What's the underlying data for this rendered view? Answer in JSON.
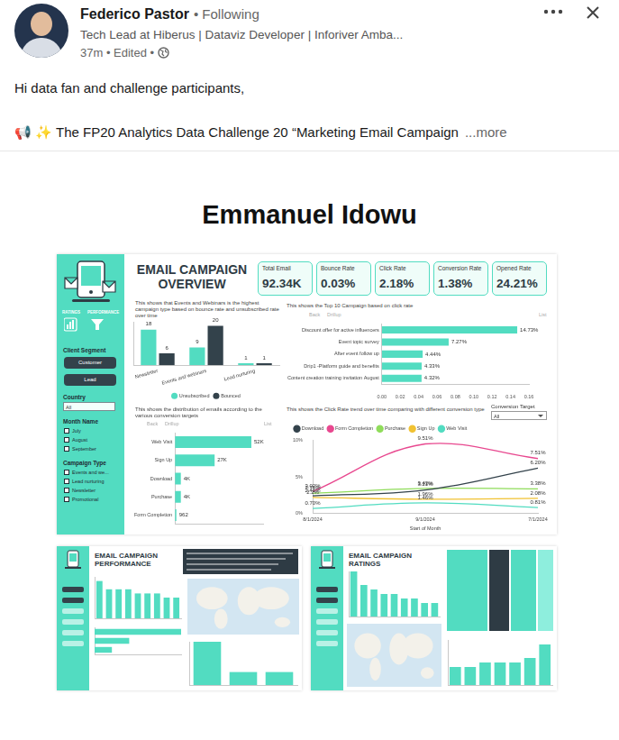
{
  "post": {
    "author": "Federico Pastor",
    "connection": "• Following",
    "headline": "Tech Lead at Hiberus | Dataviz Developer | Inforiver Amba...",
    "meta": "37m • Edited •",
    "greeting": "Hi data fan and challenge participants,",
    "intro": "📢 ✨ The FP20 Analytics Data Challenge 20 “Marketing Email Campaign",
    "more": "...more",
    "image_caption": "Emmanuel Idowu"
  },
  "dashboard": {
    "title": "EMAIL CAMPAIGN OVERVIEW",
    "nav": [
      "RATINGS",
      "PERFORMANCE"
    ],
    "kpis": [
      {
        "label": "Total Email",
        "value": "92.34K"
      },
      {
        "label": "Bounce Rate",
        "value": "0.03%"
      },
      {
        "label": "Click Rate",
        "value": "2.18%"
      },
      {
        "label": "Conversion Rate",
        "value": "1.38%"
      },
      {
        "label": "Opened Rate",
        "value": "24.21%"
      }
    ],
    "filters": {
      "client_segment": {
        "label": "Client Segment",
        "options": [
          "Customer",
          "Lead"
        ]
      },
      "country": {
        "label": "Country",
        "value": "All"
      },
      "month": {
        "label": "Month Name",
        "options": [
          "July",
          "August",
          "September"
        ]
      },
      "campaign_type": {
        "label": "Campaign Type",
        "options": [
          "Events and we...",
          "Lead nurturing",
          "Newsletter",
          "Promotional"
        ]
      }
    },
    "controls": {
      "back": "Back",
      "drill": "Drillup",
      "list": "List"
    },
    "conversion_filter": {
      "label": "Conversion Target",
      "value": "All"
    }
  },
  "thumbnails": [
    {
      "title": "EMAIL CAMPAIGN PERFORMANCE"
    },
    {
      "title": "EMAIL CAMPAIGN RATINGS",
      "treemap": {
        "values": [
          40,
          20,
          25,
          15
        ],
        "colors": [
          "#52dcc1",
          "#2e3b44",
          "#52dcc1",
          "#8eeedd"
        ]
      }
    }
  ],
  "chart_data": [
    {
      "type": "bar",
      "title": "This shows that Events and Webinars is the highest campaign type based on bounce rate and unsubscribed rate over time",
      "categories": [
        "Newsletter",
        "Events and webinars",
        "Lead nurturing"
      ],
      "series": [
        {
          "name": "Unsubscribed",
          "color": "#52dcc1",
          "values": [
            18,
            9,
            1
          ]
        },
        {
          "name": "Bounced",
          "color": "#33424b",
          "values": [
            6,
            20,
            1
          ]
        }
      ],
      "ylim": [
        0,
        22
      ],
      "yticks": [
        0,
        22
      ],
      "grid": false,
      "legend": "bottom",
      "data_labels": true,
      "tick_labels": "x"
    },
    {
      "type": "bar",
      "orientation": "horizontal",
      "title": "This shows the Top 10 Campaign based on click rate",
      "categories": [
        "Discount offer for active influencers",
        "Event topic survey",
        "After event follow up",
        "Drip1 -Platform guide and benefits",
        "Content creation training invitation August"
      ],
      "values": [
        0.1473,
        0.0727,
        0.0444,
        0.0433,
        0.0432
      ],
      "value_labels": [
        "14.73%",
        "7.27%",
        "4.44%",
        "4.33%",
        "4.32%"
      ],
      "color": "#52dcc1",
      "xlim": [
        0,
        0.16
      ],
      "xticks": [
        {
          "value": 0,
          "label": "0.00"
        },
        0.02,
        0.04,
        0.06,
        0.08,
        {
          "value": 0.1,
          "label": "0.10"
        },
        0.12,
        0.14,
        0.16
      ],
      "grid": false,
      "data_labels": true
    },
    {
      "type": "bar",
      "orientation": "horizontal",
      "title": "This shows the distribution of emails according to the various conversion targets",
      "categories": [
        "Web Visit",
        "Sign Up",
        "Download",
        "Purchase",
        "Form Completion"
      ],
      "values": [
        52000,
        27000,
        4000,
        4000,
        962
      ],
      "value_labels": [
        "52K",
        "27K",
        "4K",
        "4K",
        "962"
      ],
      "color": "#52dcc1",
      "xlim": [
        0,
        60000
      ],
      "xticks": [
        0,
        60000
      ],
      "grid": false,
      "data_labels": true,
      "tick_labels": "y"
    },
    {
      "type": "line",
      "title": "This shows the Click Rate trend over time comparing with different conversion type",
      "x_label": "Start of Month",
      "categories": [
        "8/1/2024",
        "9/1/2024",
        "7/1/2024"
      ],
      "series": [
        {
          "name": "Download",
          "color": "#33424b",
          "values": [
            2.41,
            3.21,
            6.2
          ],
          "value_labels": [
            "2.41%",
            "3.21%",
            "6.20%"
          ]
        },
        {
          "name": "Form Completion",
          "color": "#e8488f",
          "values": [
            3.02,
            9.51,
            7.51
          ],
          "value_labels": [
            "3.02%",
            "9.51%",
            "7.51%"
          ]
        },
        {
          "name": "Purchase",
          "color": "#8fdc5a",
          "values": [
            2.76,
            3.43,
            3.38
          ],
          "value_labels": [
            "2.76%",
            "3.43%",
            "3.38%"
          ]
        },
        {
          "name": "Sign Up",
          "color": "#f1c232",
          "values": [
            2.2,
            1.96,
            2.08
          ],
          "value_labels": [
            "2.2%",
            "1.96%",
            "2.08%"
          ]
        },
        {
          "name": "Web Visit",
          "color": "#52dcc1",
          "values": [
            0.7,
            1.46,
            0.81
          ],
          "value_labels": [
            "0.70%",
            "1.46%",
            "0.81%"
          ]
        }
      ],
      "ylim": [
        0,
        10
      ],
      "yticks": [
        {
          "value": 0,
          "label": "0%"
        },
        {
          "value": 5,
          "label": "5%"
        },
        {
          "value": 10,
          "label": "10%"
        }
      ],
      "grid": false,
      "legend": "top",
      "data_labels": true
    },
    {
      "type": "bar",
      "categories": [
        null,
        null,
        null,
        null,
        null,
        null,
        null,
        null,
        null
      ],
      "values": [
        9,
        7,
        7,
        7,
        6,
        6,
        6,
        5,
        5
      ],
      "color": "#52dcc1",
      "ylim": [
        0,
        10
      ],
      "yticks": [
        0,
        10
      ],
      "grid": false,
      "tick_labels": false
    },
    {
      "type": "bar",
      "orientation": "horizontal",
      "categories": [
        null,
        null,
        null
      ],
      "values": [
        10,
        4,
        2
      ],
      "color": "#52dcc1",
      "xlim": [
        0,
        10
      ],
      "xticks": [
        0,
        10
      ],
      "grid": false,
      "tick_labels": false
    },
    {
      "type": "bar",
      "categories": [
        null,
        null,
        null
      ],
      "values": [
        10,
        3,
        3
      ],
      "color": "#52dcc1",
      "ylim": [
        0,
        10
      ],
      "yticks": [
        0,
        10
      ],
      "grid": false,
      "tick_labels": false
    },
    {
      "type": "bar",
      "categories": [
        null,
        null,
        null,
        null,
        null,
        null,
        null,
        null,
        null
      ],
      "values": [
        10,
        7,
        6,
        5,
        5,
        4,
        4,
        3,
        3
      ],
      "color": "#52dcc1",
      "ylim": [
        0,
        10
      ],
      "yticks": [
        0,
        10
      ],
      "grid": false,
      "tick_labels": false
    },
    {
      "type": "bar",
      "categories": [
        null,
        null,
        null,
        null,
        null,
        null,
        null
      ],
      "values": [
        4,
        4,
        5,
        5,
        5,
        6,
        9
      ],
      "color": "#52dcc1",
      "ylim": [
        0,
        10
      ],
      "yticks": [
        0,
        10
      ],
      "grid": false,
      "tick_labels": false
    }
  ]
}
